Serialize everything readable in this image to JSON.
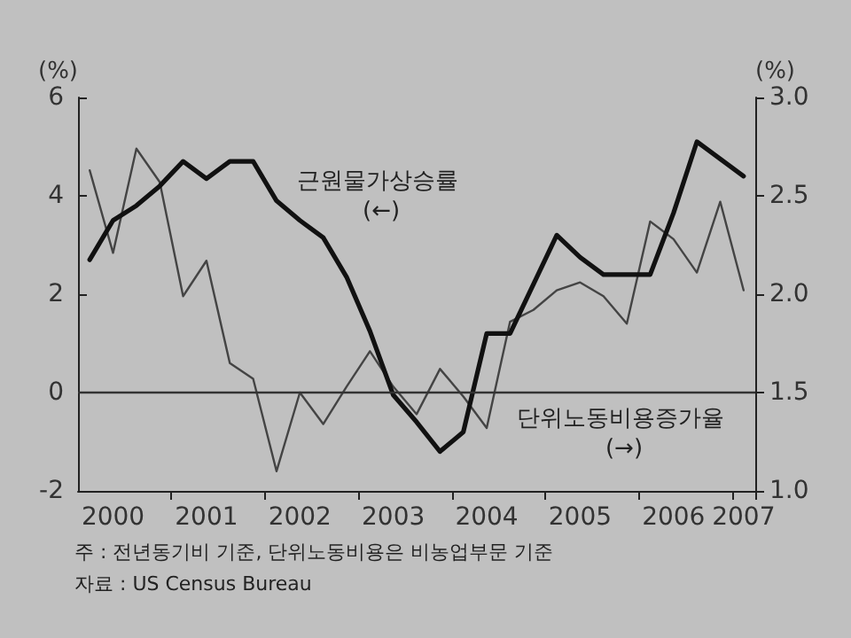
{
  "chart_data": {
    "type": "line",
    "categories": [
      null,
      "2000",
      null,
      null,
      null,
      "2001",
      null,
      null,
      null,
      "2002",
      null,
      null,
      null,
      "2003",
      null,
      null,
      null,
      "2004",
      null,
      null,
      null,
      "2005",
      null,
      null,
      null,
      "2006",
      null,
      null,
      "2007"
    ],
    "series": [
      {
        "name": "근원물가상승률 (←)",
        "color": "#111111",
        "values": [
          2.7,
          3.5,
          3.8,
          4.2,
          4.7,
          4.35,
          4.7,
          4.7,
          3.9,
          3.5,
          3.15,
          2.35,
          1.25,
          -0.05,
          -0.6,
          -1.2,
          -0.8,
          1.2,
          1.2,
          2.2,
          3.2,
          2.75,
          2.4,
          2.4,
          2.4,
          3.65,
          5.1,
          4.75,
          4.4
        ]
      },
      {
        "name": "단위노동비용증가율 (→)",
        "color": "#444444",
        "axis": "y2",
        "values": [
          2.63,
          2.21,
          2.74,
          2.57,
          1.99,
          2.17,
          1.65,
          1.57,
          1.1,
          1.5,
          1.34,
          1.53,
          1.71,
          1.53,
          1.39,
          1.62,
          1.48,
          1.32,
          1.86,
          1.92,
          2.02,
          2.06,
          1.99,
          1.85,
          2.37,
          2.28,
          2.11,
          2.47,
          2.02
        ]
      }
    ],
    "ylabel": "(%)",
    "y2label": "(%)",
    "ylim": [
      -2,
      6
    ],
    "yticks": [
      -2,
      0,
      2,
      4,
      6
    ],
    "y2lim": [
      1,
      3
    ],
    "y2ticks": [
      {
        "value": 1,
        "label": "1.0"
      },
      {
        "value": 1.5,
        "label": "1.5"
      },
      {
        "value": 2,
        "label": "2.0"
      },
      {
        "value": 2.5,
        "label": "2.5"
      },
      {
        "value": 3,
        "label": "3.0"
      }
    ],
    "ref_lines": [
      {
        "axis": "y",
        "value": 0,
        "color": "#333333"
      }
    ],
    "annotations": [
      "주 : 전년동기비 기준, 단위노동비용은 비농업부문 기준",
      "자료 : US Census Bureau"
    ],
    "legend": false,
    "grid": false,
    "marker": "none",
    "line_style": "solid"
  }
}
